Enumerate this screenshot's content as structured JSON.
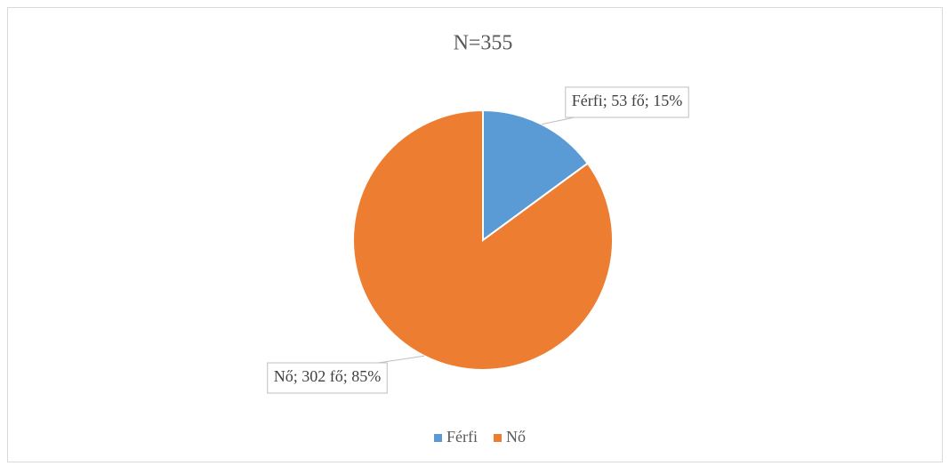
{
  "chart_data": {
    "type": "pie",
    "title": "N=355",
    "categories": [
      "Férfi",
      "Nő"
    ],
    "values": [
      53,
      302
    ],
    "value_labels": [
      "Férfi; 53 fő; 15%",
      "Nő; 302 fő; 85%"
    ],
    "colors": [
      "#5b9bd5",
      "#ed7d31"
    ],
    "legend": "bottom"
  }
}
